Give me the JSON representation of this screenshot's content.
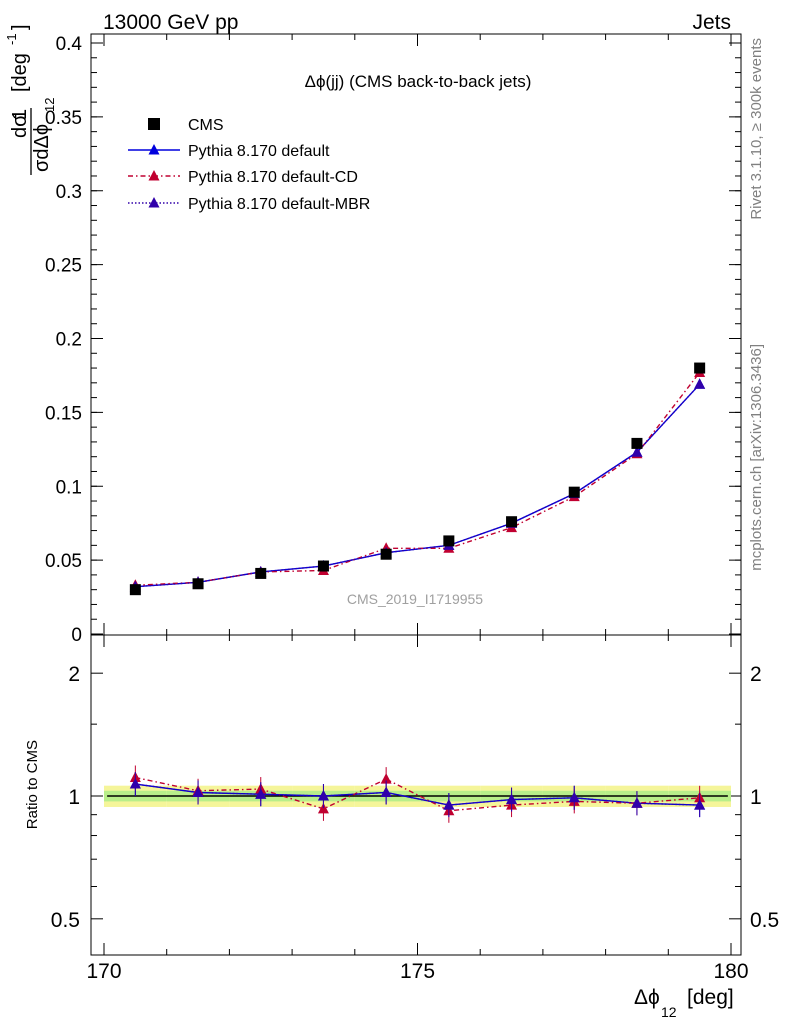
{
  "header": {
    "left": "13000 GeV pp",
    "right": "Jets"
  },
  "side_labels": {
    "rivet": "Rivet 3.1.10, ≥ 300k events",
    "mcplots": "mcplots.cern.ch [arXiv:1306.3436]"
  },
  "chart_data": [
    {
      "type": "scatter",
      "title": "Δϕ(jj) (CMS back-to-back jets)",
      "watermark": "CMS_2019_I1719955",
      "ylabel_num": "1",
      "ylabel_frac_top": "dσ",
      "ylabel_frac_bottom": "σdΔϕ",
      "ylabel_frac_sub": "12",
      "ylabel_unit": "[deg",
      "ylabel_unit_sup": "-1",
      "xlim": [
        170,
        180
      ],
      "ylim": [
        0,
        0.405
      ],
      "yticks": [
        0,
        0.05,
        0.1,
        0.15,
        0.2,
        0.25,
        0.3,
        0.35,
        0.4
      ],
      "ytick_labels": [
        "0",
        "0.05",
        "0.1",
        "0.15",
        "0.2",
        "0.25",
        "0.3",
        "0.35",
        "0.4"
      ],
      "legend_position": "top-left",
      "x": [
        170.5,
        171.5,
        172.5,
        173.5,
        174.5,
        175.5,
        176.5,
        177.5,
        178.5,
        179.5
      ],
      "series": [
        {
          "name": "CMS",
          "color": "#000000",
          "style": "markers-square",
          "values": [
            0.03,
            0.034,
            0.041,
            0.046,
            0.054,
            0.063,
            0.076,
            0.096,
            0.129,
            0.18
          ]
        },
        {
          "name": "Pythia 8.170 default",
          "color": "#0000dd",
          "style": "solid",
          "values": [
            0.032,
            0.035,
            0.042,
            0.046,
            0.055,
            0.06,
            0.075,
            0.095,
            0.123,
            0.169
          ]
        },
        {
          "name": "Pythia 8.170 default-CD",
          "color": "#c00030",
          "style": "dashdot",
          "values": [
            0.033,
            0.035,
            0.042,
            0.043,
            0.058,
            0.058,
            0.072,
            0.093,
            0.122,
            0.177
          ]
        },
        {
          "name": "Pythia 8.170 default-MBR",
          "color": "#3000aa",
          "style": "dotted",
          "values": [
            0.032,
            0.035,
            0.042,
            0.046,
            0.055,
            0.06,
            0.075,
            0.095,
            0.123,
            0.169
          ]
        }
      ]
    },
    {
      "type": "scatter",
      "ylabel": "Ratio to CMS",
      "xlabel": "Δϕ",
      "xlabel_sub": "12",
      "xlabel_unit": "[deg]",
      "xlim": [
        170,
        180
      ],
      "ylim": [
        0.4,
        2.5
      ],
      "yscale": "log",
      "xticks": [
        170,
        175,
        180
      ],
      "xtick_labels": [
        "170",
        "175",
        "180"
      ],
      "yticks": [
        0.5,
        1,
        2
      ],
      "ytick_labels": [
        "0.5",
        "1",
        "2"
      ],
      "band_inner": 0.03,
      "band_outer": 0.06,
      "x": [
        170.5,
        171.5,
        172.5,
        173.5,
        174.5,
        175.5,
        176.5,
        177.5,
        178.5,
        179.5
      ],
      "series": [
        {
          "name": "Pythia 8.170 default",
          "color": "#0000dd",
          "style": "solid",
          "values": [
            1.07,
            1.02,
            1.01,
            1.0,
            1.02,
            0.95,
            0.98,
            0.99,
            0.96,
            0.95
          ]
        },
        {
          "name": "Pythia 8.170 default-CD",
          "color": "#c00030",
          "style": "dashdot",
          "values": [
            1.11,
            1.03,
            1.04,
            0.93,
            1.1,
            0.92,
            0.95,
            0.97,
            0.96,
            0.99
          ]
        },
        {
          "name": "Pythia 8.170 default-MBR",
          "color": "#3000aa",
          "style": "dotted",
          "values": [
            1.07,
            1.02,
            1.01,
            1.0,
            1.02,
            0.95,
            0.98,
            0.99,
            0.96,
            0.95
          ]
        }
      ]
    }
  ]
}
